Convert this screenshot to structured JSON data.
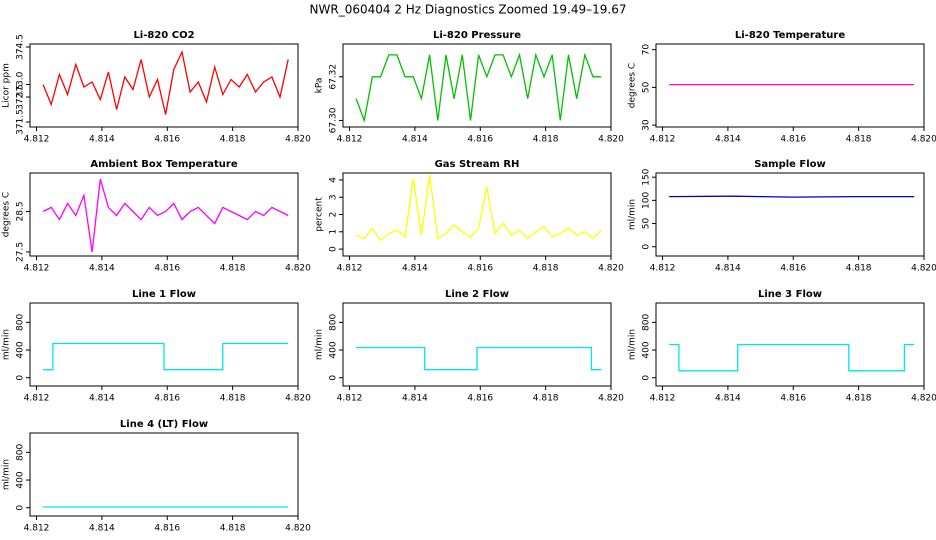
{
  "title": "NWR_060404  2 Hz Diagnostics Zoomed 19.49–19.67",
  "chart_data": [
    {
      "type": "line",
      "title": "Li-820 CO2",
      "ylabel": "Licor ppm",
      "color": "#ff0000",
      "x": [
        4.8122,
        4.81245,
        4.8127,
        4.81295,
        4.8132,
        4.81345,
        4.8137,
        4.81395,
        4.8142,
        4.81445,
        4.8147,
        4.81495,
        4.8152,
        4.81545,
        4.8157,
        4.81595,
        4.8162,
        4.81645,
        4.8167,
        4.81695,
        4.8172,
        4.81745,
        4.8177,
        4.81795,
        4.8182,
        4.81845,
        4.8187,
        4.81895,
        4.8192,
        4.81945,
        4.8197
      ],
      "values": [
        373.0,
        372.2,
        373.4,
        372.6,
        373.8,
        372.9,
        373.1,
        372.4,
        373.5,
        372.0,
        373.3,
        372.8,
        374.0,
        372.5,
        373.2,
        371.8,
        373.6,
        374.3,
        372.7,
        373.1,
        372.3,
        373.7,
        372.6,
        373.2,
        372.9,
        373.4,
        372.7,
        373.1,
        373.3,
        372.5,
        374.0
      ],
      "xlim": [
        4.8118,
        4.82
      ],
      "xticks": [
        4.812,
        4.814,
        4.816,
        4.818,
        {
          "value": 4.82,
          "label": "4.820"
        }
      ],
      "ylim": [
        371.3,
        374.62
      ],
      "yticks": [
        371.5,
        372.5,
        {
          "value": 373.0,
          "label": "373.0"
        },
        374.5
      ]
    },
    {
      "type": "line",
      "title": "Li-820 Pressure",
      "ylabel": "kPa",
      "color": "#00c000",
      "x": [
        4.8122,
        4.81245,
        4.8127,
        4.81295,
        4.8132,
        4.81345,
        4.8137,
        4.81395,
        4.8142,
        4.81445,
        4.8147,
        4.81495,
        4.8152,
        4.81545,
        4.8157,
        4.81595,
        4.8162,
        4.81645,
        4.8167,
        4.81695,
        4.8172,
        4.81745,
        4.8177,
        4.81795,
        4.8182,
        4.81845,
        4.8187,
        4.81895,
        4.8192,
        4.81945,
        4.8197
      ],
      "values": [
        67.31,
        67.3,
        67.32,
        67.32,
        67.33,
        67.33,
        67.32,
        67.32,
        67.31,
        67.33,
        67.3,
        67.33,
        67.31,
        67.33,
        67.3,
        67.33,
        67.32,
        67.33,
        67.33,
        67.32,
        67.33,
        67.31,
        67.33,
        67.32,
        67.33,
        67.3,
        67.33,
        67.31,
        67.33,
        67.32,
        67.32
      ],
      "xlim": [
        4.8118,
        4.82
      ],
      "xticks": [
        4.812,
        4.814,
        4.816,
        4.818,
        {
          "value": 4.82,
          "label": "4.820"
        }
      ],
      "ylim": [
        67.297,
        67.335
      ],
      "yticks": [
        {
          "value": 67.3,
          "label": "67.30"
        },
        67.32
      ]
    },
    {
      "type": "line",
      "title": "Li-820 Temperature",
      "ylabel": "degrees C",
      "color": "#ff00ff",
      "x": [
        4.8122,
        4.8197
      ],
      "values": [
        51.5,
        51.5
      ],
      "xlim": [
        4.8118,
        4.82
      ],
      "xticks": [
        4.812,
        4.814,
        4.816,
        4.818,
        {
          "value": 4.82,
          "label": "4.820"
        }
      ],
      "ylim": [
        29,
        73
      ],
      "yticks": [
        30,
        50,
        70
      ]
    },
    {
      "type": "line",
      "title": "Ambient Box Temperature",
      "ylabel": "degrees C",
      "color": "#ff00ff",
      "x": [
        4.8122,
        4.81245,
        4.8127,
        4.81295,
        4.8132,
        4.81345,
        4.8137,
        4.81395,
        4.8142,
        4.81445,
        4.8147,
        4.81495,
        4.8152,
        4.81545,
        4.8157,
        4.81595,
        4.8162,
        4.81645,
        4.8167,
        4.81695,
        4.8172,
        4.81745,
        4.8177,
        4.81795,
        4.8182,
        4.81845,
        4.8187,
        4.81895,
        4.8192,
        4.81945,
        4.8197
      ],
      "values": [
        28.5,
        28.6,
        28.3,
        28.7,
        28.4,
        28.9,
        27.5,
        29.3,
        28.6,
        28.4,
        28.7,
        28.5,
        28.3,
        28.6,
        28.4,
        28.5,
        28.7,
        28.3,
        28.5,
        28.6,
        28.4,
        28.2,
        28.6,
        28.5,
        28.4,
        28.3,
        28.5,
        28.4,
        28.6,
        28.5,
        28.4
      ],
      "xlim": [
        4.8118,
        4.82
      ],
      "xticks": [
        4.812,
        4.814,
        4.816,
        4.818,
        {
          "value": 4.82,
          "label": "4.820"
        }
      ],
      "ylim": [
        27.4,
        29.45
      ],
      "yticks": [
        27.5,
        28.5
      ]
    },
    {
      "type": "line",
      "title": "Gas Stream RH",
      "ylabel": "percent",
      "color": "#ffff00",
      "x": [
        4.8122,
        4.81245,
        4.8127,
        4.81295,
        4.8132,
        4.81345,
        4.8137,
        4.81395,
        4.8142,
        4.81445,
        4.8147,
        4.81495,
        4.8152,
        4.81545,
        4.8157,
        4.81595,
        4.8162,
        4.81645,
        4.8167,
        4.81695,
        4.8172,
        4.81745,
        4.8177,
        4.81795,
        4.8182,
        4.81845,
        4.8187,
        4.81895,
        4.8192,
        4.81945,
        4.8197
      ],
      "values": [
        0.8,
        0.6,
        1.2,
        0.5,
        0.9,
        1.1,
        0.7,
        4.1,
        0.8,
        4.3,
        0.6,
        0.9,
        1.4,
        1.0,
        0.7,
        1.2,
        3.6,
        0.9,
        1.5,
        0.8,
        1.1,
        0.6,
        1.0,
        1.3,
        0.7,
        0.9,
        1.2,
        0.8,
        1.0,
        0.6,
        1.1
      ],
      "xlim": [
        4.8118,
        4.82
      ],
      "xticks": [
        4.812,
        4.814,
        4.816,
        4.818,
        {
          "value": 4.82,
          "label": "4.820"
        }
      ],
      "ylim": [
        -0.4,
        4.4
      ],
      "yticks": [
        0,
        1,
        2,
        3,
        4
      ]
    },
    {
      "type": "line",
      "title": "Sample Flow",
      "ylabel": "ml/min",
      "color": "#0000c0",
      "x": [
        4.8122,
        4.8141,
        4.816,
        4.8179,
        4.8197
      ],
      "values": [
        108,
        109,
        107,
        108,
        108
      ],
      "xlim": [
        4.8118,
        4.82
      ],
      "xticks": [
        4.812,
        4.814,
        4.816,
        4.818,
        {
          "value": 4.82,
          "label": "4.820"
        }
      ],
      "ylim": [
        -20,
        159
      ],
      "yticks": [
        0,
        50,
        100,
        150
      ]
    },
    {
      "type": "line",
      "title": "Line 1 Flow",
      "ylabel": "ml/min",
      "color": "#00e5ee",
      "x": [
        4.8122,
        4.8125,
        4.8125,
        4.8159,
        4.8159,
        4.8177,
        4.8177,
        4.8197
      ],
      "values": [
        116,
        116,
        495,
        495,
        116,
        116,
        495,
        495
      ],
      "xlim": [
        4.8118,
        4.82
      ],
      "xticks": [
        4.812,
        4.814,
        4.816,
        4.818,
        {
          "value": 4.82,
          "label": "4.820"
        }
      ],
      "ylim": [
        -120,
        1080
      ],
      "yticks": [
        0,
        400,
        800
      ]
    },
    {
      "type": "line",
      "title": "Line 2 Flow",
      "ylabel": "ml/min",
      "color": "#00e5ee",
      "x": [
        4.8122,
        4.8143,
        4.8143,
        4.8159,
        4.8159,
        4.8194,
        4.8194,
        4.8197
      ],
      "values": [
        436,
        436,
        116,
        116,
        436,
        436,
        116,
        116
      ],
      "xlim": [
        4.8118,
        4.82
      ],
      "xticks": [
        4.812,
        4.814,
        4.816,
        4.818,
        {
          "value": 4.82,
          "label": "4.820"
        }
      ],
      "ylim": [
        -120,
        1080
      ],
      "yticks": [
        0,
        400,
        800
      ]
    },
    {
      "type": "line",
      "title": "Line 3 Flow",
      "ylabel": "ml/min",
      "color": "#00e5ee",
      "x": [
        4.8122,
        4.8125,
        4.8125,
        4.8143,
        4.8143,
        4.8177,
        4.8177,
        4.8194,
        4.8194,
        4.8197
      ],
      "values": [
        480,
        480,
        100,
        100,
        480,
        480,
        100,
        100,
        480,
        480
      ],
      "xlim": [
        4.8118,
        4.82
      ],
      "xticks": [
        4.812,
        4.814,
        4.816,
        4.818,
        {
          "value": 4.82,
          "label": "4.820"
        }
      ],
      "ylim": [
        -120,
        1080
      ],
      "yticks": [
        0,
        400,
        800
      ]
    },
    {
      "type": "line",
      "title": "Line 4 (LT) Flow",
      "ylabel": "ml/min",
      "color": "#00e5ee",
      "x": [
        4.8122,
        4.8197
      ],
      "values": [
        10,
        10
      ],
      "xlim": [
        4.8118,
        4.82
      ],
      "xticks": [
        4.812,
        4.814,
        4.816,
        4.818,
        {
          "value": 4.82,
          "label": "4.820"
        }
      ],
      "ylim": [
        -120,
        1080
      ],
      "yticks": [
        0,
        400,
        800
      ]
    }
  ]
}
